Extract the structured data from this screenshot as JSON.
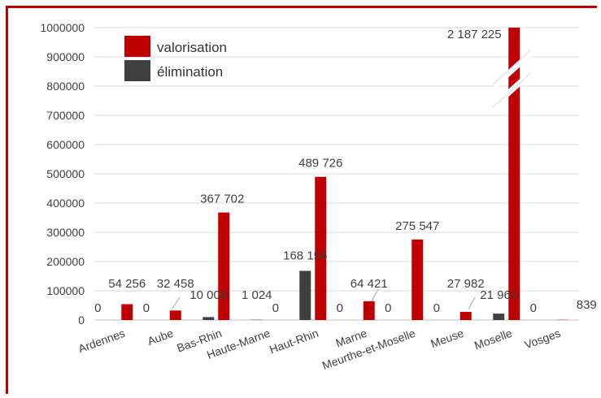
{
  "chart_data": {
    "type": "bar",
    "categories": [
      "Ardennes",
      "Aube",
      "Bas-Rhin",
      "Haute-Marne",
      "Haut-Rhin",
      "Marne",
      "Meurthe-et-Moselle",
      "Meuse",
      "Moselle",
      "Vosges"
    ],
    "series": [
      {
        "name": "élimination",
        "color": "#404040",
        "values": [
          0,
          0,
          10006,
          1024,
          168156,
          0,
          0,
          0,
          21965,
          0
        ],
        "labels": [
          "0",
          "0",
          "10 006",
          "1 024",
          "168 156",
          "0",
          "0",
          "0",
          "21 965",
          "0"
        ]
      },
      {
        "name": "valorisation",
        "color": "#c00000",
        "values": [
          54256,
          32458,
          367702,
          0,
          489726,
          64421,
          275547,
          27982,
          2187225,
          839
        ],
        "labels": [
          "54 256",
          "32 458",
          "367 702",
          "0",
          "489 726",
          "64 421",
          "275 547",
          "27 982",
          "2 187 225",
          "839"
        ]
      }
    ],
    "ylim": [
      0,
      1000000
    ],
    "yticks": [
      "0",
      "100000",
      "200000",
      "300000",
      "400000",
      "500000",
      "600000",
      "700000",
      "800000",
      "900000",
      "1000000"
    ],
    "axis_break": "Moselle",
    "grid": true,
    "legend": "top-left",
    "xlabel": "",
    "ylabel": ""
  }
}
